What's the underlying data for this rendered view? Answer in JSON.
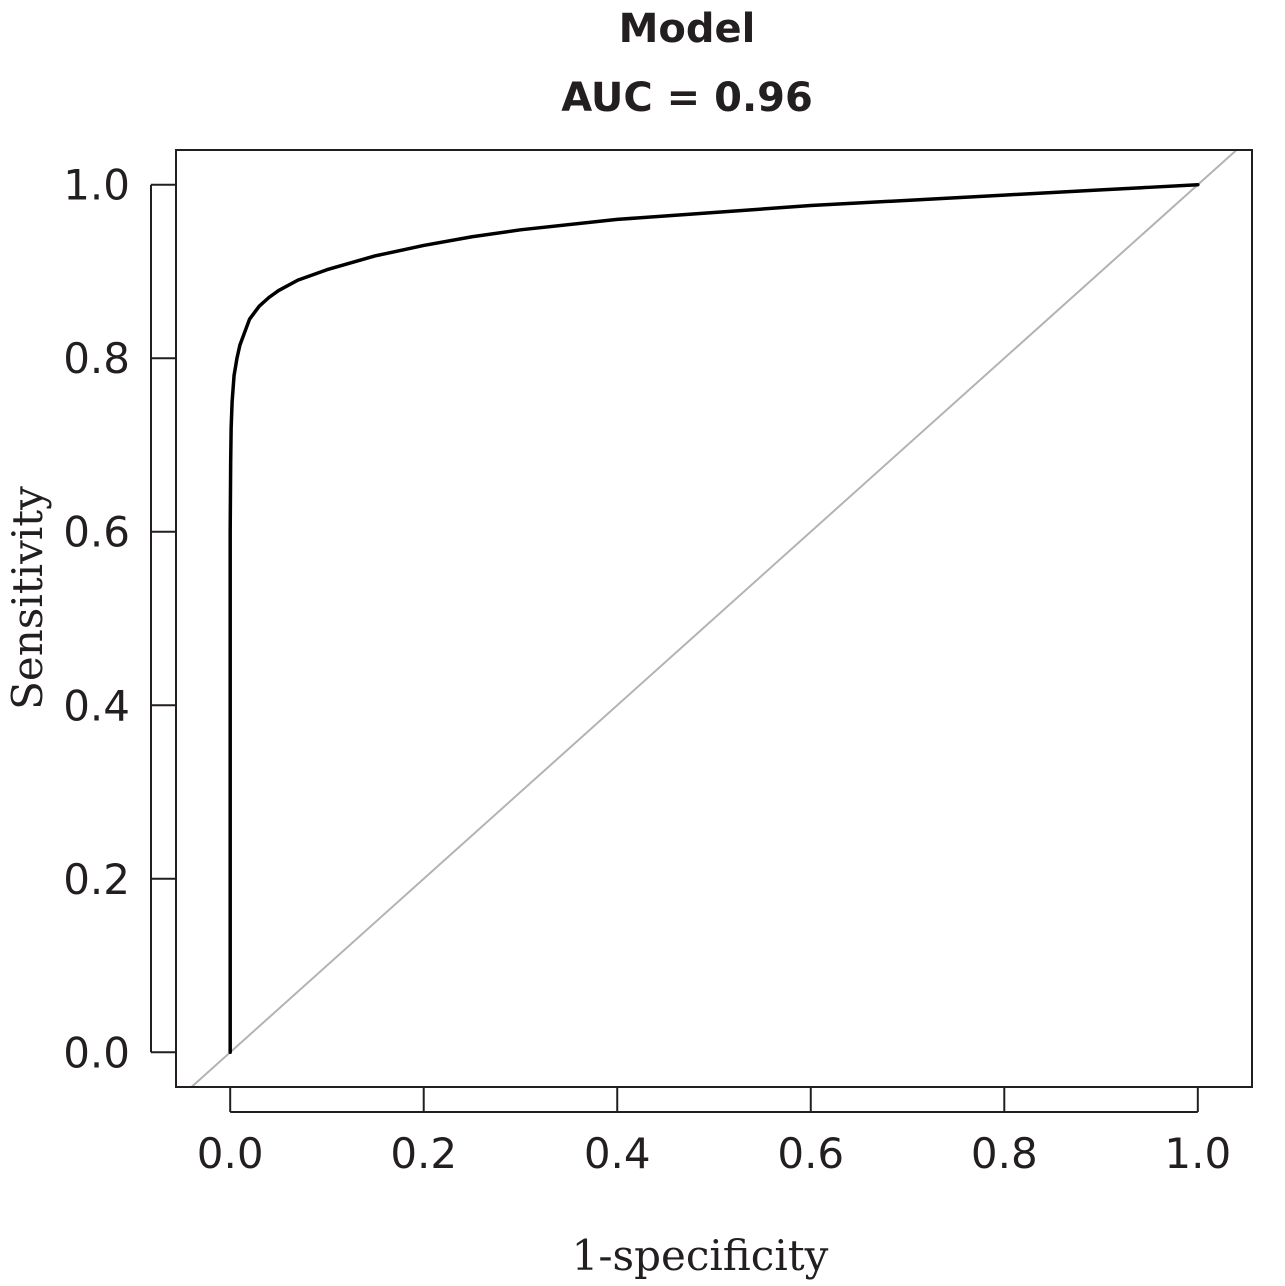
{
  "chart_data": {
    "type": "line",
    "title": "Model",
    "subtitle": "AUC = 0.96",
    "xlabel": "1-specificity",
    "ylabel": "Sensitivity",
    "xlim": [
      -0.056,
      1.056
    ],
    "ylim": [
      -0.04,
      1.04
    ],
    "x_ticks": [
      "0.0",
      "0.2",
      "0.4",
      "0.6",
      "0.8",
      "1.0"
    ],
    "y_ticks": [
      "0.0",
      "0.2",
      "0.4",
      "0.6",
      "0.8",
      "1.0"
    ],
    "grid": false,
    "series": [
      {
        "x": [
          0.0,
          0.0,
          0.0005,
          0.001,
          0.002,
          0.004,
          0.007,
          0.01,
          0.015,
          0.02,
          0.03,
          0.04,
          0.05,
          0.07,
          0.1,
          0.15,
          0.2,
          0.25,
          0.3,
          0.4,
          0.5,
          0.6,
          0.7,
          0.8,
          0.9,
          0.95,
          1.0
        ],
        "y": [
          0.0,
          0.6,
          0.68,
          0.72,
          0.75,
          0.78,
          0.8,
          0.815,
          0.83,
          0.845,
          0.86,
          0.87,
          0.878,
          0.89,
          0.902,
          0.918,
          0.93,
          0.94,
          0.948,
          0.96,
          0.968,
          0.976,
          0.982,
          0.988,
          0.994,
          0.997,
          1.0
        ],
        "color": "#000000"
      }
    ],
    "reference_line": {
      "x": [
        -0.04,
        1.04
      ],
      "y": [
        -0.04,
        1.04
      ],
      "color": "#b3b3b3"
    }
  }
}
